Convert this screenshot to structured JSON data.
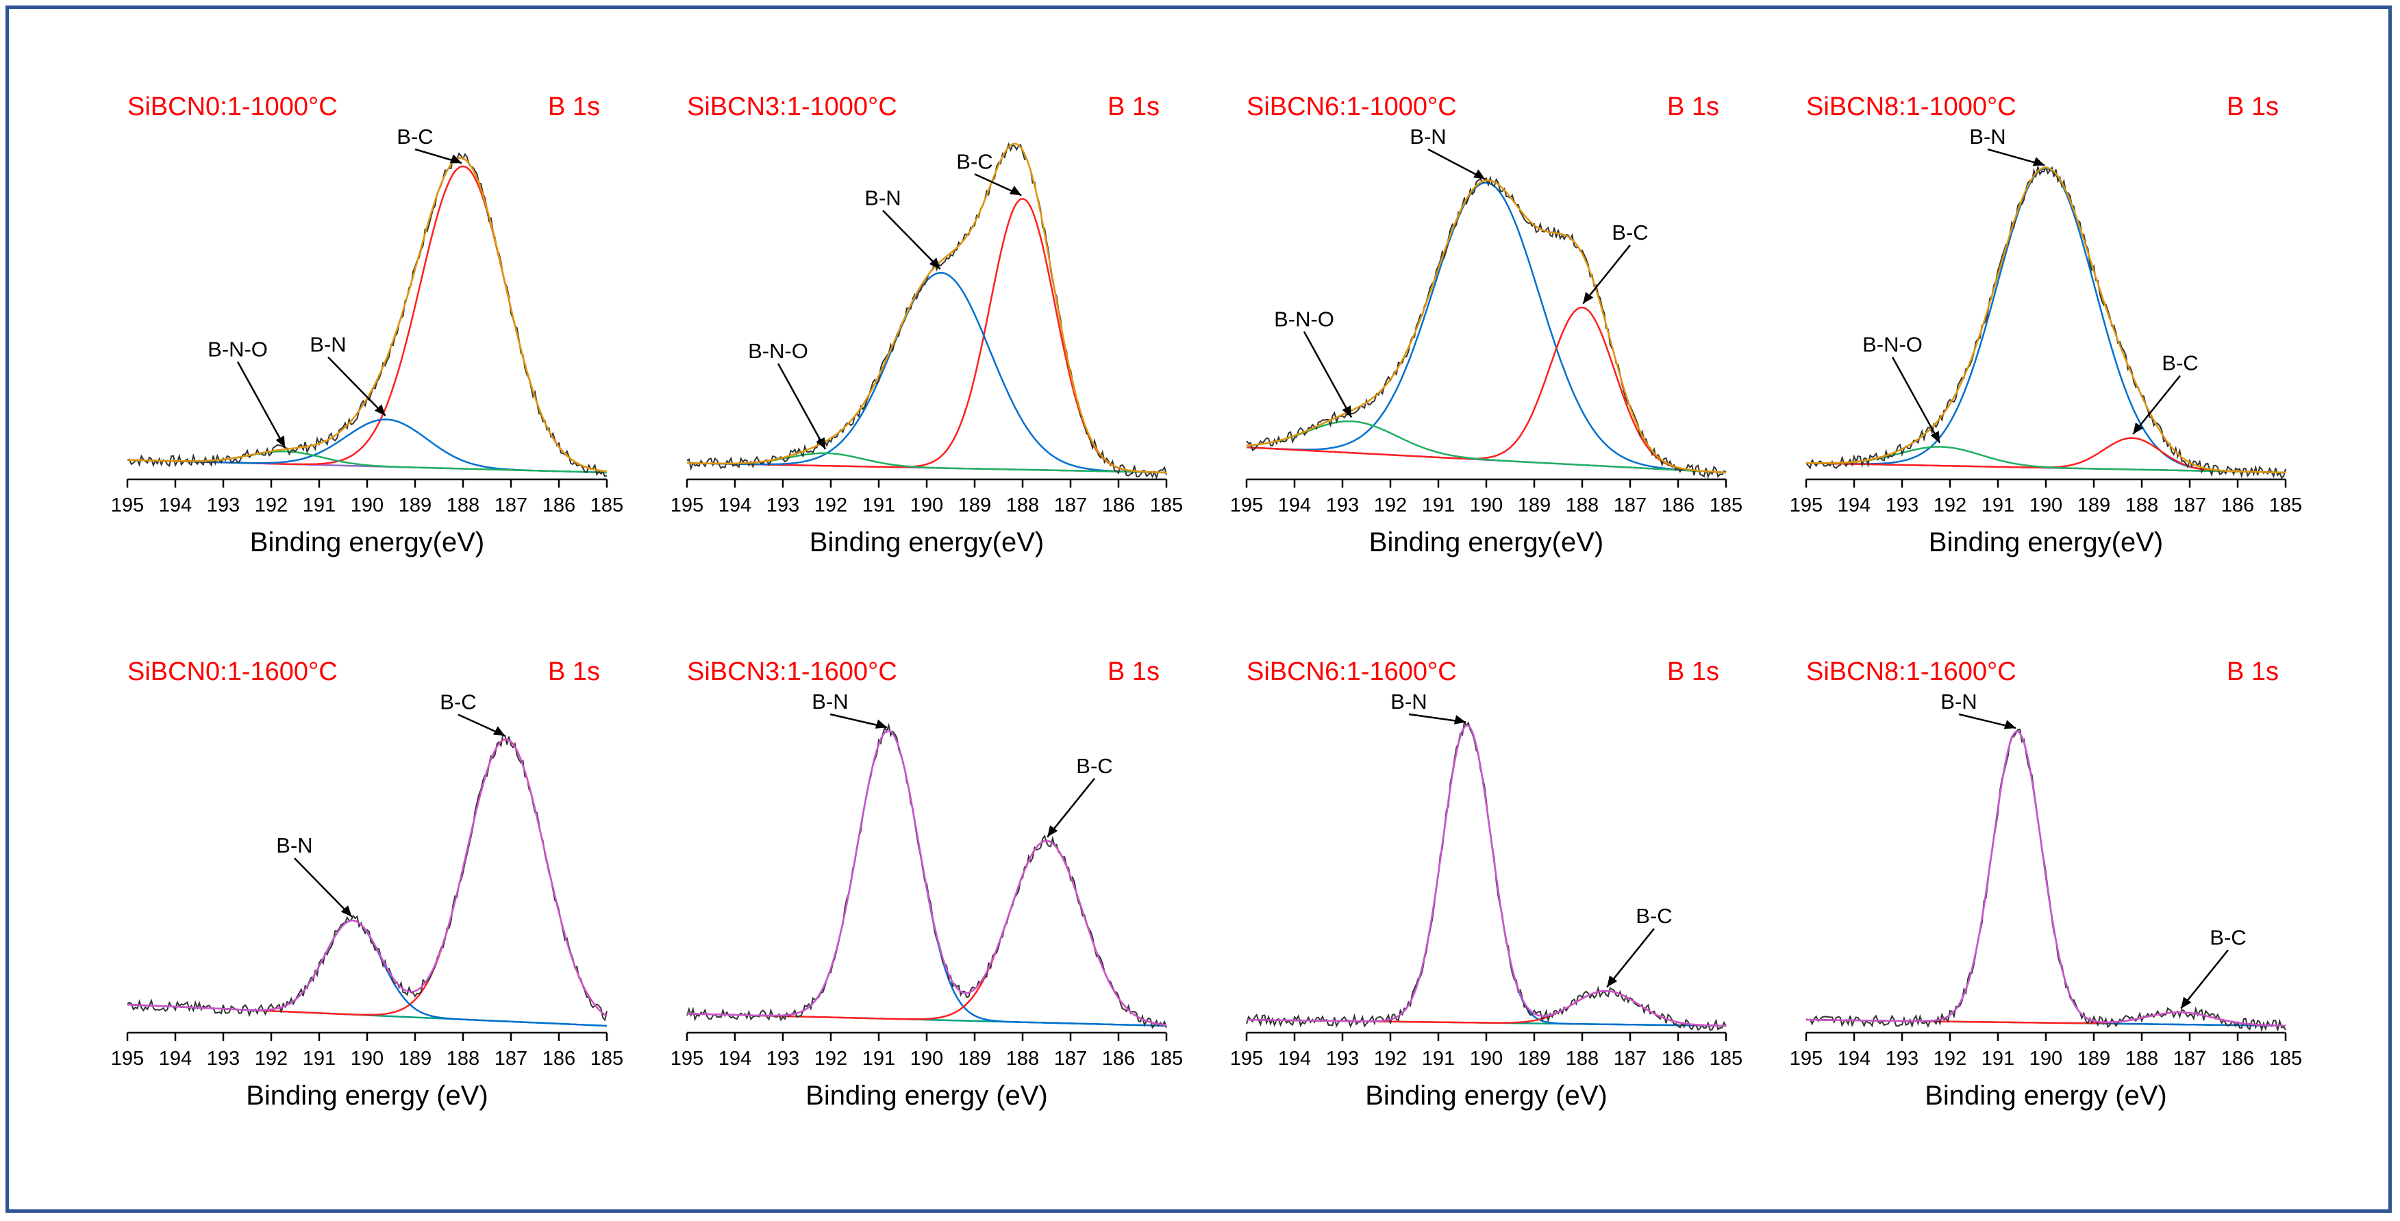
{
  "colors": {
    "frame": "#2f5597",
    "raw": "#333333",
    "envelope": "#e0960c",
    "envelope_1600": "#cc55cc",
    "baseline": "#9966cc",
    "baseline_1600": "#00a080",
    "peak_bc": "#ff2020",
    "peak_bn": "#0070d0",
    "peak_bno": "#20b060",
    "label": "#ff0000"
  },
  "chart_data": [
    {
      "type": "line",
      "title": "SiBCN0:1-1000°C",
      "tag": "B 1s",
      "xlabel": "Binding energy(eV)",
      "xlim": [
        195,
        185
      ],
      "xticks": [
        195,
        194,
        193,
        192,
        191,
        190,
        189,
        188,
        187,
        186,
        185
      ],
      "ylim": [
        0,
        1
      ],
      "yticks": [],
      "baseline": [
        [
          195,
          0.04
        ],
        [
          185,
          0.0
        ]
      ],
      "series": [
        {
          "name": "B-C",
          "center": 188.0,
          "height": 0.96,
          "fwhm": 2.1
        },
        {
          "name": "B-N",
          "center": 189.6,
          "height": 0.15,
          "fwhm": 2.0
        },
        {
          "name": "B-N-O",
          "center": 191.7,
          "height": 0.04,
          "fwhm": 1.8
        }
      ],
      "annotations": [
        {
          "text": "B-C",
          "at": 188.0
        },
        {
          "text": "B-N",
          "at": 189.6
        },
        {
          "text": "B-N-O",
          "at": 191.7
        }
      ]
    },
    {
      "type": "line",
      "title": "SiBCN3:1-1000°C",
      "tag": "B 1s",
      "xlabel": "Binding energy(eV)",
      "xlim": [
        195,
        185
      ],
      "xticks": [
        195,
        194,
        193,
        192,
        191,
        190,
        189,
        188,
        187,
        186,
        185
      ],
      "ylim": [
        0,
        1
      ],
      "yticks": [],
      "baseline": [
        [
          195,
          0.03
        ],
        [
          185,
          0.0
        ]
      ],
      "series": [
        {
          "name": "B-C",
          "center": 188.0,
          "height": 0.86,
          "fwhm": 1.6
        },
        {
          "name": "B-N",
          "center": 189.7,
          "height": 0.62,
          "fwhm": 2.4
        },
        {
          "name": "B-N-O",
          "center": 192.1,
          "height": 0.04,
          "fwhm": 1.8
        }
      ],
      "annotations": [
        {
          "text": "B-C",
          "at": 188.0
        },
        {
          "text": "B-N",
          "at": 189.7
        },
        {
          "text": "B-N-O",
          "at": 192.1
        }
      ]
    },
    {
      "type": "line",
      "title": "SiBCN6:1-1000°C",
      "tag": "B 1s",
      "xlabel": "Binding energy(eV)",
      "xlim": [
        195,
        185
      ],
      "xticks": [
        195,
        194,
        193,
        192,
        191,
        190,
        189,
        188,
        187,
        186,
        185
      ],
      "ylim": [
        0,
        1
      ],
      "yticks": [],
      "baseline": [
        [
          195,
          0.08
        ],
        [
          185,
          0.0
        ]
      ],
      "series": [
        {
          "name": "B-N",
          "center": 190.0,
          "height": 0.88,
          "fwhm": 2.6
        },
        {
          "name": "B-C",
          "center": 188.0,
          "height": 0.5,
          "fwhm": 1.6
        },
        {
          "name": "B-N-O",
          "center": 192.8,
          "height": 0.1,
          "fwhm": 2.2
        }
      ],
      "annotations": [
        {
          "text": "B-N",
          "at": 190.0
        },
        {
          "text": "B-C",
          "at": 188.0
        },
        {
          "text": "B-N-O",
          "at": 192.8
        }
      ]
    },
    {
      "type": "line",
      "title": "SiBCN8:1-1000°C",
      "tag": "B 1s",
      "xlabel": "Binding energy(eV)",
      "xlim": [
        195,
        185
      ],
      "xticks": [
        195,
        194,
        193,
        192,
        191,
        190,
        189,
        188,
        187,
        186,
        185
      ],
      "ylim": [
        0,
        1
      ],
      "yticks": [],
      "baseline": [
        [
          195,
          0.03
        ],
        [
          185,
          0.0
        ]
      ],
      "series": [
        {
          "name": "B-N",
          "center": 190.0,
          "height": 0.95,
          "fwhm": 2.4
        },
        {
          "name": "B-C",
          "center": 188.2,
          "height": 0.1,
          "fwhm": 1.4
        },
        {
          "name": "B-N-O",
          "center": 192.2,
          "height": 0.06,
          "fwhm": 2.0
        }
      ],
      "annotations": [
        {
          "text": "B-N",
          "at": 190.0
        },
        {
          "text": "B-C",
          "at": 188.2
        },
        {
          "text": "B-N-O",
          "at": 192.2
        }
      ]
    },
    {
      "type": "line",
      "title": "SiBCN0:1-1600°C",
      "tag": "B 1s",
      "xlabel": "Binding energy (eV)",
      "xlim": [
        195,
        185
      ],
      "xticks": [
        195,
        194,
        193,
        192,
        191,
        190,
        189,
        188,
        187,
        186,
        185
      ],
      "ylim": [
        0,
        1
      ],
      "yticks": [],
      "baseline": [
        [
          195,
          0.07
        ],
        [
          185,
          0.0
        ]
      ],
      "series": [
        {
          "name": "B-C",
          "center": 187.1,
          "height": 0.93,
          "fwhm": 1.9
        },
        {
          "name": "B-N",
          "center": 190.3,
          "height": 0.31,
          "fwhm": 1.4
        }
      ],
      "annotations": [
        {
          "text": "B-C",
          "at": 187.1
        },
        {
          "text": "B-N",
          "at": 190.3
        }
      ]
    },
    {
      "type": "line",
      "title": "SiBCN3:1-1600°C",
      "tag": "B 1s",
      "xlabel": "Binding energy (eV)",
      "xlim": [
        195,
        185
      ],
      "xticks": [
        195,
        194,
        193,
        192,
        191,
        190,
        189,
        188,
        187,
        186,
        185
      ],
      "ylim": [
        0,
        1
      ],
      "yticks": [],
      "baseline": [
        [
          195,
          0.04
        ],
        [
          185,
          0.0
        ]
      ],
      "series": [
        {
          "name": "B-N",
          "center": 190.8,
          "height": 0.95,
          "fwhm": 1.5
        },
        {
          "name": "B-C",
          "center": 187.5,
          "height": 0.6,
          "fwhm": 1.8
        }
      ],
      "annotations": [
        {
          "text": "B-N",
          "at": 190.8
        },
        {
          "text": "B-C",
          "at": 187.5
        }
      ]
    },
    {
      "type": "line",
      "title": "SiBCN6:1-1600°C",
      "tag": "B 1s",
      "xlabel": "Binding energy (eV)",
      "xlim": [
        195,
        185
      ],
      "xticks": [
        195,
        194,
        193,
        192,
        191,
        190,
        189,
        188,
        187,
        186,
        185
      ],
      "ylim": [
        0,
        1
      ],
      "yticks": [],
      "baseline": [
        [
          195,
          0.02
        ],
        [
          185,
          0.0
        ]
      ],
      "series": [
        {
          "name": "B-N",
          "center": 190.4,
          "height": 0.98,
          "fwhm": 1.2
        },
        {
          "name": "B-C",
          "center": 187.5,
          "height": 0.11,
          "fwhm": 1.6
        }
      ],
      "annotations": [
        {
          "text": "B-N",
          "at": 190.4
        },
        {
          "text": "B-C",
          "at": 187.5
        }
      ]
    },
    {
      "type": "line",
      "title": "SiBCN8:1-1600°C",
      "tag": "B 1s",
      "xlabel": "Binding energy (eV)",
      "xlim": [
        195,
        185
      ],
      "xticks": [
        195,
        194,
        193,
        192,
        191,
        190,
        189,
        188,
        187,
        186,
        185
      ],
      "ylim": [
        0,
        1
      ],
      "yticks": [],
      "baseline": [
        [
          195,
          0.02
        ],
        [
          185,
          0.0
        ]
      ],
      "series": [
        {
          "name": "B-N",
          "center": 190.6,
          "height": 0.96,
          "fwhm": 1.2
        },
        {
          "name": "B-C",
          "center": 187.2,
          "height": 0.04,
          "fwhm": 1.6
        }
      ],
      "annotations": [
        {
          "text": "B-N",
          "at": 190.6
        },
        {
          "text": "B-C",
          "at": 187.2
        }
      ]
    }
  ]
}
